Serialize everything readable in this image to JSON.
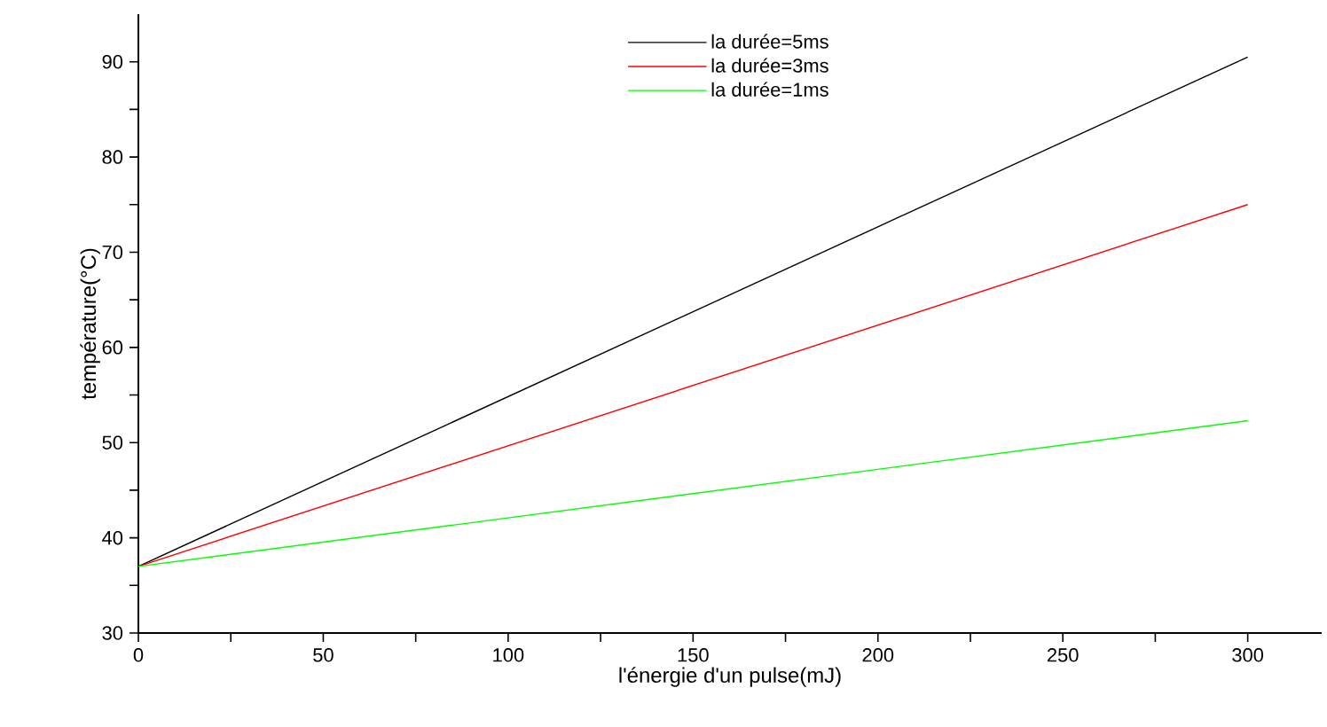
{
  "chart_data": {
    "type": "line",
    "xlabel": "l'énergie d'un pulse(mJ)",
    "ylabel": "température(°C)",
    "x": [
      0,
      300
    ],
    "series": [
      {
        "name": "la durée=5ms",
        "color": "#000000",
        "values": [
          37,
          90.5
        ]
      },
      {
        "name": "la durée=3ms",
        "color": "#ff0000",
        "values": [
          37,
          75
        ]
      },
      {
        "name": "la durée=1ms",
        "color": "#00ff00",
        "values": [
          37,
          52.3
        ]
      }
    ],
    "xlim": [
      0,
      320
    ],
    "ylim": [
      30,
      95
    ],
    "xticks": [
      0,
      {
        "value": 25,
        "label": null
      },
      50,
      {
        "value": 75,
        "label": null
      },
      100,
      {
        "value": 125,
        "label": null
      },
      150,
      {
        "value": 175,
        "label": null
      },
      200,
      {
        "value": 225,
        "label": null
      },
      250,
      {
        "value": 275,
        "label": null
      },
      300
    ],
    "yticks": [
      30,
      {
        "value": 35,
        "label": null
      },
      40,
      {
        "value": 45,
        "label": null
      },
      50,
      {
        "value": 55,
        "label": null
      },
      60,
      {
        "value": 65,
        "label": null
      },
      70,
      {
        "value": 75,
        "label": null
      },
      80,
      {
        "value": 85,
        "label": null
      },
      90
    ],
    "grid": false,
    "legend": "top",
    "marker": "none",
    "line_style": "solid"
  }
}
